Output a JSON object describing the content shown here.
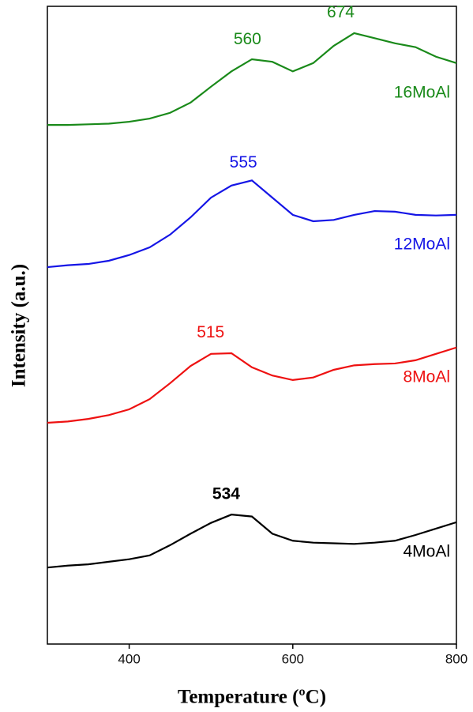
{
  "chart_data": {
    "type": "line",
    "xlabel": "Temperature (ºC)",
    "ylabel": "Intensity (a.u.)",
    "x": [
      300,
      325,
      350,
      375,
      400,
      425,
      450,
      475,
      500,
      525,
      550,
      575,
      600,
      625,
      650,
      675,
      700,
      725,
      750,
      775,
      800
    ],
    "series": [
      {
        "name": "4MoAl",
        "color": "#000000",
        "values": [
          12.0,
          12.3,
          12.5,
          12.9,
          13.3,
          13.9,
          15.5,
          17.3,
          19.0,
          20.3,
          20.0,
          17.3,
          16.2,
          15.9,
          15.8,
          15.7,
          15.9,
          16.2,
          17.1,
          18.1,
          19.1
        ]
      },
      {
        "name": "8MoAl",
        "color": "#ee1111",
        "values": [
          34.7,
          34.9,
          35.3,
          35.9,
          36.8,
          38.4,
          40.9,
          43.6,
          45.5,
          45.6,
          43.4,
          42.1,
          41.4,
          41.8,
          43.0,
          43.7,
          43.9,
          44.0,
          44.5,
          45.5,
          46.5
        ]
      },
      {
        "name": "12MoAl",
        "color": "#1515e6",
        "values": [
          59.1,
          59.4,
          59.6,
          60.1,
          61.0,
          62.2,
          64.2,
          66.9,
          70.0,
          71.9,
          72.7,
          70.0,
          67.3,
          66.3,
          66.5,
          67.3,
          67.9,
          67.8,
          67.3,
          67.2,
          67.3
        ]
      },
      {
        "name": "16MoAl",
        "color": "#1a8a1a",
        "values": [
          81.4,
          81.4,
          81.5,
          81.6,
          81.9,
          82.4,
          83.3,
          84.9,
          87.4,
          89.8,
          91.7,
          91.3,
          89.8,
          91.1,
          93.8,
          95.8,
          95.0,
          94.2,
          93.6,
          92.1,
          91.1
        ]
      }
    ],
    "annotations": [
      {
        "text": "534",
        "x": 534,
        "series": 0
      },
      {
        "text": "515",
        "x": 515,
        "series": 1
      },
      {
        "text": "555",
        "x": 555,
        "series": 2
      },
      {
        "text": "560",
        "x": 560,
        "series": 3
      },
      {
        "text": "674",
        "x": 674,
        "series": 3
      }
    ],
    "xlim": [
      300,
      800
    ],
    "ylim": [
      0,
      100
    ],
    "xticks": [
      400,
      600,
      800
    ]
  }
}
